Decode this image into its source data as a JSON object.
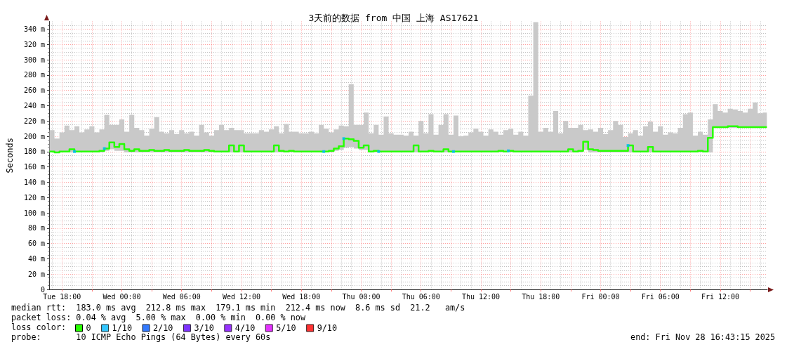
{
  "chart_data": {
    "type": "step",
    "title": "3天前的数据 from 中国 上海 AS17621",
    "ylabel": "Seconds",
    "legend_title": "loss color:",
    "annotations": [
      "median rtt:  183.0 ms avg  212.8 ms max  179.1 ms min  212.4 ms now  8.6 ms sd  21.2   am/s",
      "packet loss: 0.04 % avg  5.00 % max  0.00 % min  0.00 % now",
      "probe:       10 ICMP Echo Pings (64 Bytes) every 60s",
      "end: Fri Nov 28 16:43:15 2025"
    ],
    "xlim": [
      "2025-11-25T16:43",
      "2025-11-28T16:43"
    ],
    "xticks": [
      {
        "value": "2025-11-25T18:00",
        "label": "Tue 18:00"
      },
      {
        "value": "2025-11-25T21:00",
        "label": null
      },
      {
        "value": "2025-11-26T00:00",
        "label": "Wed 00:00"
      },
      {
        "value": "2025-11-26T03:00",
        "label": null
      },
      {
        "value": "2025-11-26T06:00",
        "label": "Wed 06:00"
      },
      {
        "value": "2025-11-26T09:00",
        "label": null
      },
      {
        "value": "2025-11-26T12:00",
        "label": "Wed 12:00"
      },
      {
        "value": "2025-11-26T15:00",
        "label": null
      },
      {
        "value": "2025-11-26T18:00",
        "label": "Wed 18:00"
      },
      {
        "value": "2025-11-26T21:00",
        "label": null
      },
      {
        "value": "2025-11-27T00:00",
        "label": "Thu 00:00"
      },
      {
        "value": "2025-11-27T03:00",
        "label": null
      },
      {
        "value": "2025-11-27T06:00",
        "label": "Thu 06:00"
      },
      {
        "value": "2025-11-27T09:00",
        "label": null
      },
      {
        "value": "2025-11-27T12:00",
        "label": "Thu 12:00"
      },
      {
        "value": "2025-11-27T15:00",
        "label": null
      },
      {
        "value": "2025-11-27T18:00",
        "label": "Thu 18:00"
      },
      {
        "value": "2025-11-27T21:00",
        "label": null
      },
      {
        "value": "2025-11-28T00:00",
        "label": "Fri 00:00"
      },
      {
        "value": "2025-11-28T03:00",
        "label": null
      },
      {
        "value": "2025-11-28T06:00",
        "label": "Fri 06:00"
      },
      {
        "value": "2025-11-28T09:00",
        "label": null
      },
      {
        "value": "2025-11-28T12:00",
        "label": "Fri 12:00"
      },
      {
        "value": "2025-11-28T15:00",
        "label": null
      }
    ],
    "ylim": [
      0,
      350
    ],
    "yticks": [
      0,
      {
        "value": 20,
        "label": "20 m"
      },
      {
        "value": 40,
        "label": "40 m"
      },
      {
        "value": 60,
        "label": "60 m"
      },
      {
        "value": 80,
        "label": "80 m"
      },
      {
        "value": 100,
        "label": "100 m"
      },
      {
        "value": 120,
        "label": "120 m"
      },
      {
        "value": 140,
        "label": "140 m"
      },
      {
        "value": 160,
        "label": "160 m"
      },
      {
        "value": 180,
        "label": "180 m"
      },
      {
        "value": 200,
        "label": "200 m"
      },
      {
        "value": 220,
        "label": "220 m"
      },
      {
        "value": 240,
        "label": "240 m"
      },
      {
        "value": 260,
        "label": "260 m"
      },
      {
        "value": 280,
        "label": "280 m"
      },
      {
        "value": 300,
        "label": "300 m"
      },
      {
        "value": 320,
        "label": "320 m"
      },
      {
        "value": 340,
        "label": "340 m"
      }
    ],
    "grid": true,
    "legend": "bottom left",
    "x": [
      "2025-11-25T16:45",
      "2025-11-25T17:15",
      "2025-11-25T17:45",
      "2025-11-25T18:15",
      "2025-11-25T18:45",
      "2025-11-25T19:15",
      "2025-11-25T19:45",
      "2025-11-25T20:15",
      "2025-11-25T20:45",
      "2025-11-25T21:15",
      "2025-11-25T21:45",
      "2025-11-25T22:15",
      "2025-11-25T22:45",
      "2025-11-25T23:15",
      "2025-11-25T23:45",
      "2025-11-26T00:15",
      "2025-11-26T00:45",
      "2025-11-26T01:15",
      "2025-11-26T01:45",
      "2025-11-26T02:15",
      "2025-11-26T02:45",
      "2025-11-26T03:15",
      "2025-11-26T03:45",
      "2025-11-26T04:15",
      "2025-11-26T04:45",
      "2025-11-26T05:15",
      "2025-11-26T05:45",
      "2025-11-26T06:15",
      "2025-11-26T06:45",
      "2025-11-26T07:15",
      "2025-11-26T07:45",
      "2025-11-26T08:15",
      "2025-11-26T08:45",
      "2025-11-26T09:15",
      "2025-11-26T09:45",
      "2025-11-26T10:15",
      "2025-11-26T10:45",
      "2025-11-26T11:15",
      "2025-11-26T11:45",
      "2025-11-26T12:15",
      "2025-11-26T12:45",
      "2025-11-26T13:15",
      "2025-11-26T13:45",
      "2025-11-26T14:15",
      "2025-11-26T14:45",
      "2025-11-26T15:15",
      "2025-11-26T15:45",
      "2025-11-26T16:15",
      "2025-11-26T16:45",
      "2025-11-26T17:15",
      "2025-11-26T17:45",
      "2025-11-26T18:15",
      "2025-11-26T18:45",
      "2025-11-26T19:15",
      "2025-11-26T19:45",
      "2025-11-26T20:15",
      "2025-11-26T20:45",
      "2025-11-26T21:15",
      "2025-11-26T21:45",
      "2025-11-26T22:15",
      "2025-11-26T22:45",
      "2025-11-26T23:15",
      "2025-11-26T23:45",
      "2025-11-27T00:15",
      "2025-11-27T00:45",
      "2025-11-27T01:15",
      "2025-11-27T01:45",
      "2025-11-27T02:15",
      "2025-11-27T02:45",
      "2025-11-27T03:15",
      "2025-11-27T03:45",
      "2025-11-27T04:15",
      "2025-11-27T04:45",
      "2025-11-27T05:15",
      "2025-11-27T05:45",
      "2025-11-27T06:15",
      "2025-11-27T06:45",
      "2025-11-27T07:15",
      "2025-11-27T07:45",
      "2025-11-27T08:15",
      "2025-11-27T08:45",
      "2025-11-27T09:15",
      "2025-11-27T09:45",
      "2025-11-27T10:15",
      "2025-11-27T10:45",
      "2025-11-27T11:15",
      "2025-11-27T11:45",
      "2025-11-27T12:15",
      "2025-11-27T12:45",
      "2025-11-27T13:15",
      "2025-11-27T13:45",
      "2025-11-27T14:15",
      "2025-11-27T14:45",
      "2025-11-27T15:15",
      "2025-11-27T15:45",
      "2025-11-27T16:15",
      "2025-11-27T16:45",
      "2025-11-27T17:15",
      "2025-11-27T17:45",
      "2025-11-27T18:15",
      "2025-11-27T18:45",
      "2025-11-27T19:15",
      "2025-11-27T19:45",
      "2025-11-27T20:15",
      "2025-11-27T20:45",
      "2025-11-27T21:15",
      "2025-11-27T21:45",
      "2025-11-27T22:15",
      "2025-11-27T22:45",
      "2025-11-27T23:15",
      "2025-11-27T23:45",
      "2025-11-28T00:15",
      "2025-11-28T00:45",
      "2025-11-28T01:15",
      "2025-11-28T01:45",
      "2025-11-28T02:15",
      "2025-11-28T02:45",
      "2025-11-28T03:15",
      "2025-11-28T03:45",
      "2025-11-28T04:15",
      "2025-11-28T04:45",
      "2025-11-28T05:15",
      "2025-11-28T05:45",
      "2025-11-28T06:15",
      "2025-11-28T06:45",
      "2025-11-28T07:15",
      "2025-11-28T07:45",
      "2025-11-28T08:15",
      "2025-11-28T08:45",
      "2025-11-28T09:15",
      "2025-11-28T09:45",
      "2025-11-28T10:15",
      "2025-11-28T10:45",
      "2025-11-28T11:15",
      "2025-11-28T11:45",
      "2025-11-28T12:15",
      "2025-11-28T12:45",
      "2025-11-28T13:15",
      "2025-11-28T13:45",
      "2025-11-28T14:15",
      "2025-11-28T14:45",
      "2025-11-28T15:15",
      "2025-11-28T15:45",
      "2025-11-28T16:15",
      "2025-11-28T16:40"
    ],
    "series": [
      {
        "name": "0",
        "color": "#26ff00",
        "values": [
          180,
          179,
          180,
          180,
          183,
          180,
          180,
          180,
          180,
          180,
          181,
          184,
          192,
          186,
          190,
          183,
          181,
          183,
          181,
          181,
          182,
          181,
          181,
          182,
          181,
          181,
          181,
          182,
          181,
          181,
          181,
          182,
          181,
          180,
          180,
          180,
          188,
          180,
          188,
          180,
          180,
          180,
          180,
          180,
          180,
          188,
          181,
          180,
          181,
          180,
          180,
          180,
          180,
          180,
          180,
          180,
          181,
          184,
          187,
          197,
          196,
          194,
          185,
          188,
          180,
          181,
          180,
          180,
          180,
          180,
          180,
          180,
          180,
          188,
          180,
          180,
          181,
          180,
          180,
          183,
          180,
          180,
          180,
          180,
          180,
          180,
          180,
          180,
          180,
          180,
          181,
          180,
          181,
          180,
          180,
          180,
          180,
          180,
          180,
          180,
          180,
          180,
          180,
          180,
          183,
          180,
          181,
          193,
          183,
          182,
          181,
          181,
          181,
          181,
          181,
          181,
          188,
          180,
          180,
          180,
          186,
          180,
          180,
          180,
          180,
          180,
          180,
          180,
          180,
          180,
          181,
          180,
          198,
          212,
          212,
          212,
          213,
          213,
          212,
          212,
          212,
          212,
          212,
          212,
          212
        ],
        "lower": [
          179,
          179,
          179,
          179,
          179,
          179,
          179,
          179,
          179,
          179,
          179,
          181,
          183,
          181,
          181,
          179,
          179,
          179,
          179,
          179,
          179,
          179,
          179,
          179,
          179,
          179,
          179,
          179,
          179,
          179,
          179,
          179,
          179,
          179,
          179,
          179,
          179,
          179,
          179,
          179,
          179,
          179,
          179,
          179,
          179,
          179,
          179,
          179,
          179,
          179,
          179,
          179,
          179,
          179,
          179,
          179,
          179,
          181,
          182,
          185,
          186,
          184,
          182,
          182,
          179,
          179,
          179,
          179,
          179,
          179,
          179,
          179,
          179,
          179,
          179,
          179,
          179,
          179,
          179,
          179,
          179,
          179,
          179,
          179,
          179,
          179,
          179,
          179,
          179,
          179,
          179,
          179,
          179,
          179,
          179,
          179,
          179,
          179,
          179,
          179,
          179,
          179,
          179,
          179,
          179,
          179,
          179,
          182,
          179,
          179,
          179,
          179,
          179,
          179,
          179,
          179,
          179,
          179,
          179,
          179,
          179,
          179,
          179,
          179,
          179,
          179,
          179,
          179,
          179,
          179,
          179,
          179,
          179,
          211,
          211,
          211,
          211,
          211,
          211,
          211,
          211,
          211,
          211,
          211,
          211
        ],
        "upper": [
          208,
          197,
          205,
          214,
          208,
          213,
          205,
          209,
          213,
          205,
          209,
          228,
          215,
          215,
          222,
          206,
          228,
          211,
          208,
          201,
          210,
          225,
          206,
          204,
          208,
          203,
          208,
          204,
          206,
          201,
          215,
          205,
          201,
          208,
          215,
          208,
          211,
          208,
          208,
          204,
          204,
          204,
          208,
          206,
          209,
          213,
          204,
          216,
          206,
          206,
          204,
          204,
          206,
          204,
          215,
          210,
          205,
          209,
          214,
          213,
          268,
          215,
          215,
          231,
          204,
          215,
          202,
          226,
          204,
          202,
          202,
          201,
          206,
          201,
          220,
          204,
          229,
          202,
          215,
          229,
          202,
          227,
          200,
          201,
          205,
          210,
          206,
          201,
          209,
          206,
          202,
          208,
          210,
          202,
          206,
          201,
          253,
          349,
          206,
          211,
          206,
          233,
          204,
          220,
          211,
          211,
          215,
          208,
          209,
          206,
          211,
          203,
          208,
          220,
          215,
          199,
          204,
          208,
          201,
          213,
          219,
          206,
          213,
          202,
          205,
          204,
          211,
          229,
          231,
          201,
          206,
          202,
          222,
          242,
          233,
          231,
          236,
          235,
          233,
          231,
          236,
          244,
          230,
          231,
          231
        ]
      },
      {
        "name": "1/10",
        "type": "scatter",
        "color": "#00b8ff",
        "marker": "square",
        "x": [
          "2025-11-25T19:15",
          "2025-11-25T22:15",
          "2025-11-26T20:15",
          "2025-11-26T22:15",
          "2025-11-27T01:45",
          "2025-11-27T09:15",
          "2025-11-27T14:45",
          "2025-11-28T02:45"
        ],
        "values": [
          180,
          184,
          180,
          197,
          180,
          180,
          181,
          188
        ]
      },
      {
        "name": "2/10",
        "type": "scatter",
        "color": "#0059ff",
        "marker": "square",
        "values": [
          null,
          null,
          null,
          null,
          null,
          null,
          null,
          null,
          null,
          null,
          null,
          null,
          null,
          null,
          null,
          null,
          null,
          null,
          null,
          null,
          null,
          null,
          null,
          null,
          null,
          null,
          null,
          null,
          null,
          null,
          null,
          null,
          null,
          null,
          null,
          null,
          null,
          null,
          null,
          null,
          null,
          null,
          null,
          null,
          null,
          null,
          null,
          null,
          null,
          null,
          null,
          null,
          null,
          null,
          null,
          null,
          null,
          null,
          null,
          null,
          null,
          null,
          null,
          null,
          null,
          null,
          null,
          null,
          null,
          null,
          null,
          null,
          null,
          null,
          null,
          null,
          null,
          null,
          null,
          null,
          null,
          null,
          null,
          null,
          null,
          null,
          null,
          null,
          null,
          null,
          null,
          null,
          null,
          null,
          null,
          null,
          null,
          null,
          null,
          null,
          null,
          null,
          null,
          null,
          null,
          null,
          null,
          null,
          null,
          null,
          null,
          null,
          null,
          null,
          null,
          null,
          null,
          null,
          null,
          null,
          null,
          null,
          null,
          null,
          null,
          null,
          null,
          null,
          null,
          null,
          null,
          null,
          null,
          null,
          null,
          null,
          null,
          null,
          null,
          null,
          null,
          null,
          null,
          null,
          null
        ]
      },
      {
        "name": "3/10",
        "type": "scatter",
        "color": "#5e00ff",
        "marker": "square",
        "values": [
          null,
          null,
          null,
          null,
          null,
          null,
          null,
          null,
          null,
          null,
          null,
          null,
          null,
          null,
          null,
          null,
          null,
          null,
          null,
          null,
          null,
          null,
          null,
          null,
          null,
          null,
          null,
          null,
          null,
          null,
          null,
          null,
          null,
          null,
          null,
          null,
          null,
          null,
          null,
          null,
          null,
          null,
          null,
          null,
          null,
          null,
          null,
          null,
          null,
          null,
          null,
          null,
          null,
          null,
          null,
          null,
          null,
          null,
          null,
          null,
          null,
          null,
          null,
          null,
          null,
          null,
          null,
          null,
          null,
          null,
          null,
          null,
          null,
          null,
          null,
          null,
          null,
          null,
          null,
          null,
          null,
          null,
          null,
          null,
          null,
          null,
          null,
          null,
          null,
          null,
          null,
          null,
          null,
          null,
          null,
          null,
          null,
          null,
          null,
          null,
          null,
          null,
          null,
          null,
          null,
          null,
          null,
          null,
          null,
          null,
          null,
          null,
          null,
          null,
          null,
          null,
          null,
          null,
          null,
          null,
          null,
          null,
          null,
          null,
          null,
          null,
          null,
          null,
          null,
          null,
          null,
          null,
          null,
          null,
          null,
          null,
          null,
          null,
          null,
          null,
          null,
          null,
          null,
          null,
          null
        ]
      },
      {
        "name": "4/10",
        "type": "scatter",
        "color": "#7e00ff",
        "marker": "square",
        "values": [
          null,
          null,
          null,
          null,
          null,
          null,
          null,
          null,
          null,
          null,
          null,
          null,
          null,
          null,
          null,
          null,
          null,
          null,
          null,
          null,
          null,
          null,
          null,
          null,
          null,
          null,
          null,
          null,
          null,
          null,
          null,
          null,
          null,
          null,
          null,
          null,
          null,
          null,
          null,
          null,
          null,
          null,
          null,
          null,
          null,
          null,
          null,
          null,
          null,
          null,
          null,
          null,
          null,
          null,
          null,
          null,
          null,
          null,
          null,
          null,
          null,
          null,
          null,
          null,
          null,
          null,
          null,
          null,
          null,
          null,
          null,
          null,
          null,
          null,
          null,
          null,
          null,
          null,
          null,
          null,
          null,
          null,
          null,
          null,
          null,
          null,
          null,
          null,
          null,
          null,
          null,
          null,
          null,
          null,
          null,
          null,
          null,
          null,
          null,
          null,
          null,
          null,
          null,
          null,
          null,
          null,
          null,
          null,
          null,
          null,
          null,
          null,
          null,
          null,
          null,
          null,
          null,
          null,
          null,
          null,
          null,
          null,
          null,
          null,
          null,
          null,
          null,
          null,
          null,
          null,
          null,
          null,
          null,
          null,
          null,
          null,
          null,
          null,
          null,
          null,
          null,
          null,
          null,
          null,
          null
        ]
      },
      {
        "name": "5/10",
        "type": "scatter",
        "color": "#dd00ff",
        "marker": "square",
        "values": [
          null,
          null,
          null,
          null,
          null,
          null,
          null,
          null,
          null,
          null,
          null,
          null,
          null,
          null,
          null,
          null,
          null,
          null,
          null,
          null,
          null,
          null,
          null,
          null,
          null,
          null,
          null,
          null,
          null,
          null,
          null,
          null,
          null,
          null,
          null,
          null,
          null,
          null,
          null,
          null,
          null,
          null,
          null,
          null,
          null,
          null,
          null,
          null,
          null,
          null,
          null,
          null,
          null,
          null,
          null,
          null,
          null,
          null,
          null,
          null,
          null,
          null,
          null,
          null,
          null,
          null,
          null,
          null,
          null,
          null,
          null,
          null,
          null,
          null,
          null,
          null,
          null,
          null,
          null,
          null,
          null,
          null,
          null,
          null,
          null,
          null,
          null,
          null,
          null,
          null,
          null,
          null,
          null,
          null,
          null,
          null,
          null,
          null,
          null,
          null,
          null,
          null,
          null,
          null,
          null,
          null,
          null,
          null,
          null,
          null,
          null,
          null,
          null,
          null,
          null,
          null,
          null,
          null,
          null,
          null,
          null,
          null,
          null,
          null,
          null,
          null,
          null,
          null,
          null,
          null,
          null,
          null,
          null,
          null,
          null,
          null,
          null,
          null,
          null,
          null,
          null,
          null,
          null,
          null,
          null
        ]
      },
      {
        "name": "9/10",
        "type": "scatter",
        "color": "#ff0000",
        "marker": "square",
        "values": [
          null,
          null,
          null,
          null,
          null,
          null,
          null,
          null,
          null,
          null,
          null,
          null,
          null,
          null,
          null,
          null,
          null,
          null,
          null,
          null,
          null,
          null,
          null,
          null,
          null,
          null,
          null,
          null,
          null,
          null,
          null,
          null,
          null,
          null,
          null,
          null,
          null,
          null,
          null,
          null,
          null,
          null,
          null,
          null,
          null,
          null,
          null,
          null,
          null,
          null,
          null,
          null,
          null,
          null,
          null,
          null,
          null,
          null,
          null,
          null,
          null,
          null,
          null,
          null,
          null,
          null,
          null,
          null,
          null,
          null,
          null,
          null,
          null,
          null,
          null,
          null,
          null,
          null,
          null,
          null,
          null,
          null,
          null,
          null,
          null,
          null,
          null,
          null,
          null,
          null,
          null,
          null,
          null,
          null,
          null,
          null,
          null,
          null,
          null,
          null,
          null,
          null,
          null,
          null,
          null,
          null,
          null,
          null,
          null,
          null,
          null,
          null,
          null,
          null,
          null,
          null,
          null,
          null,
          null,
          null,
          null,
          null,
          null,
          null,
          null,
          null,
          null,
          null,
          null,
          null,
          null,
          null,
          null,
          null,
          null,
          null,
          null,
          null,
          null,
          null,
          null,
          null,
          null,
          null,
          null
        ]
      }
    ]
  }
}
